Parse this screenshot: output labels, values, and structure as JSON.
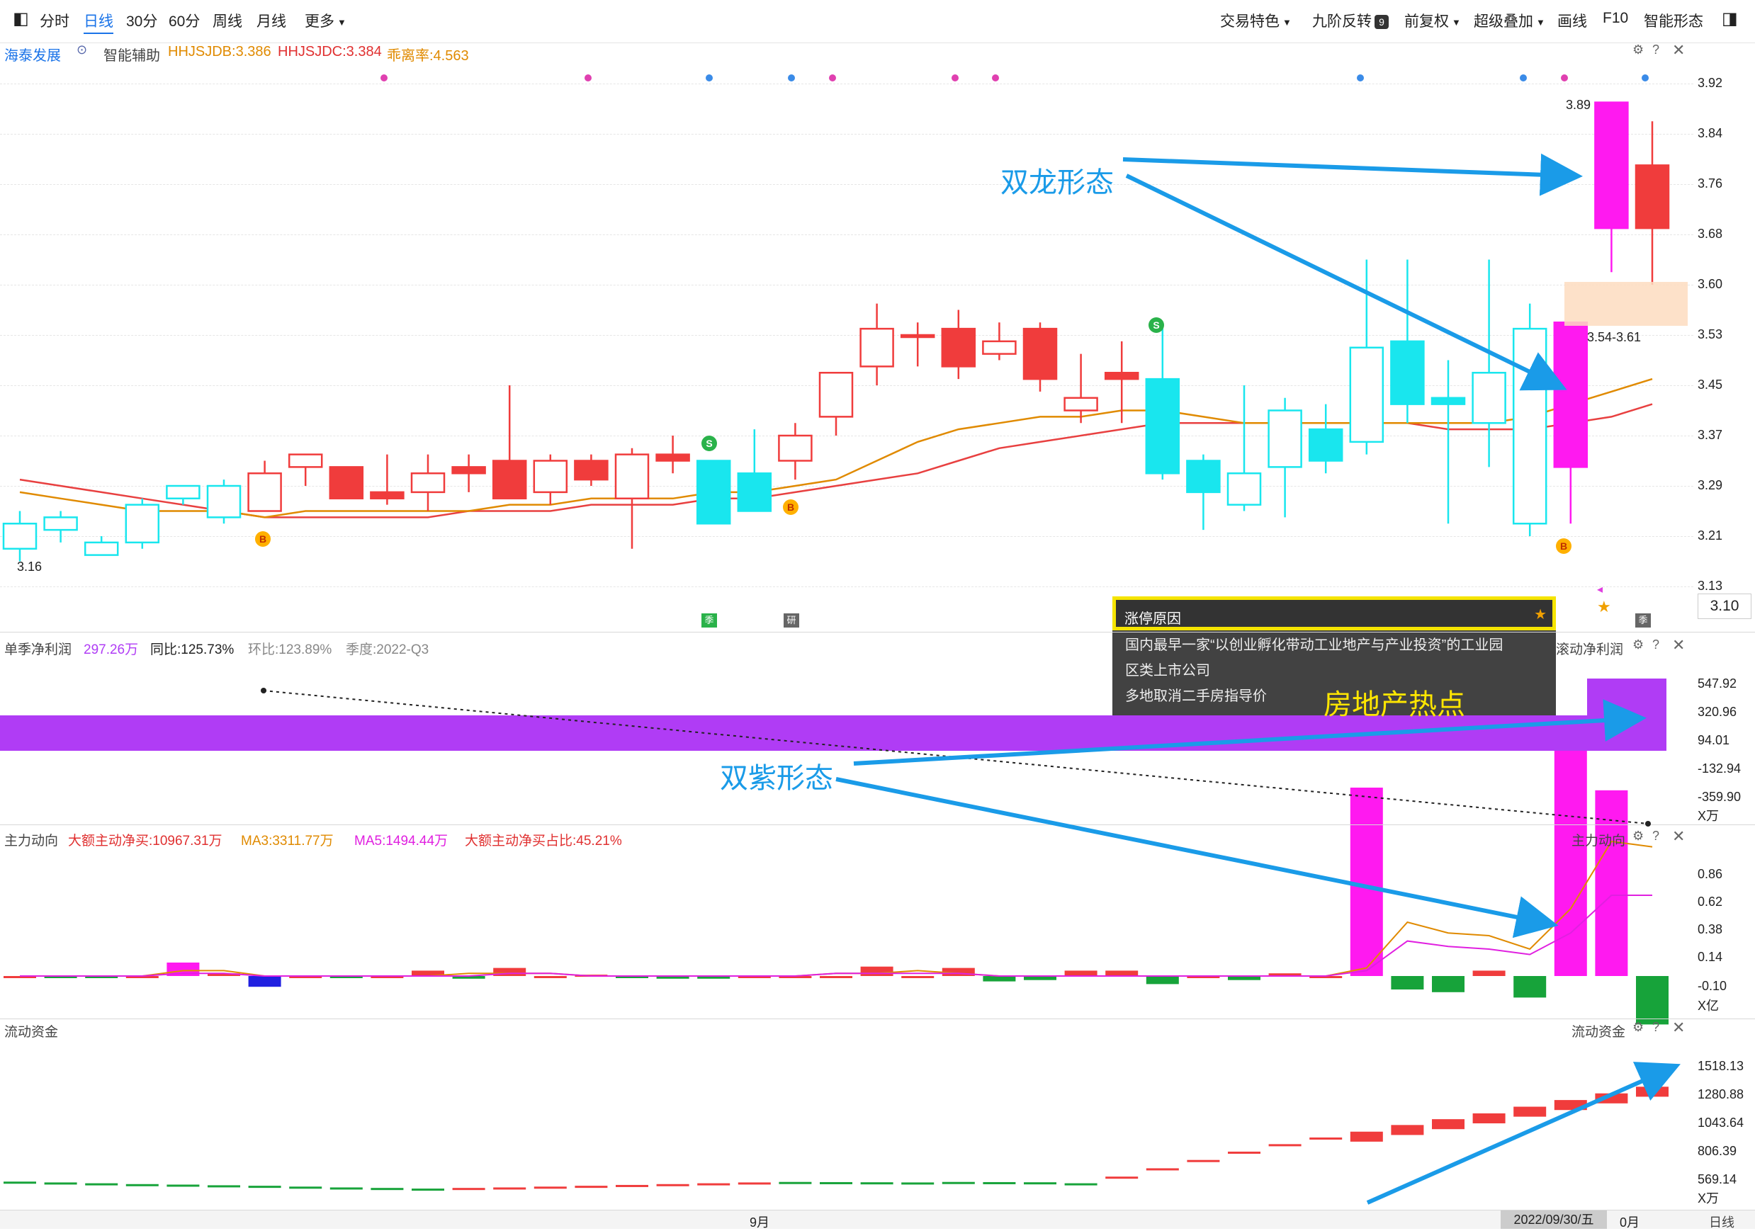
{
  "toolbar": {
    "items": [
      "分时",
      "日线",
      "30分",
      "60分",
      "周线",
      "月线",
      "更多"
    ],
    "right": [
      "交易特色",
      "九阶反转",
      "9",
      "前复权",
      "超级叠加",
      "画线",
      "F10",
      "智能形态"
    ]
  },
  "price_info": {
    "stock": "海泰发展",
    "assist": "智能辅助",
    "hhjsjdb": "HHJSJDB:3.386",
    "hhjsjdc": "HHJSJDC:3.384",
    "deviation": "乖离率:4.563"
  },
  "price_axis": [
    "3.92",
    "3.84",
    "3.76",
    "3.68",
    "3.60",
    "3.53",
    "3.45",
    "3.37",
    "3.29",
    "3.21",
    "3.13"
  ],
  "current_price": "3.10",
  "labels": {
    "low": "3.16",
    "high": "3.89",
    "zone": "3.54-3.61"
  },
  "candle_markers": {
    "s": "S",
    "b": "B",
    "yan": "研",
    "si": "季"
  },
  "profit_info": {
    "name": "单季净利润",
    "value": "297.26万",
    "yoy": "同比:125.73%",
    "qoq": "环比:123.89%",
    "season": "季度:2022-Q3",
    "right_label": "滚动净利润"
  },
  "profit_axis": [
    "547.92",
    "320.96",
    "94.01",
    "-132.94",
    "-359.90"
  ],
  "profit_unit": "X万",
  "flow_info": {
    "name": "主力动向",
    "big_net": "大额主动净买:10967.31万",
    "ma3": "MA3:3311.77万",
    "ma5": "MA5:1494.44万",
    "ratio": "大额主动净买占比:45.21%",
    "right_label": "主力动向"
  },
  "flow_axis": [
    "0.86",
    "0.62",
    "0.38",
    "0.14",
    "-0.10"
  ],
  "flow_unit": "X亿",
  "liquid_info": {
    "name": "流动资金",
    "right_label": "流动资金"
  },
  "liquid_axis": [
    "1518.13",
    "1280.88",
    "1043.64",
    "806.39",
    "569.14"
  ],
  "liquid_unit": "X万",
  "bottom": {
    "month": "9月",
    "date": "2022/09/30/五",
    "month2": "0月",
    "period": "日线"
  },
  "popup": {
    "title": "涨停原因",
    "line1": "国内最早一家“以创业孵化带动工业地产与产业投资”的工业园",
    "line2": "区类上市公司",
    "line3": "多地取消二手房指导价"
  },
  "annotations": {
    "a1": "双龙形态",
    "a2": "房地产热点",
    "a3": "双紫形态"
  },
  "colors": {
    "up": "#f03c3c",
    "down": "#19e6ee",
    "magenta": "#ff19f0",
    "green": "#17a33a",
    "purple": "#b03cf5",
    "blue_arrow": "#1a9be8"
  },
  "chart_data": [
    {
      "type": "candlestick",
      "title": "",
      "yticks": [
        3.92,
        3.84,
        3.76,
        3.68,
        3.6,
        3.53,
        3.45,
        3.37,
        3.29,
        3.21,
        3.13
      ],
      "ylim": [
        3.1,
        3.95
      ],
      "candles": [
        {
          "o": 3.18,
          "c": 3.22,
          "h": 3.24,
          "l": 3.16,
          "k": "d"
        },
        {
          "o": 3.21,
          "c": 3.23,
          "h": 3.24,
          "l": 3.19,
          "k": "d"
        },
        {
          "o": 3.17,
          "c": 3.19,
          "h": 3.2,
          "l": 3.17,
          "k": "d"
        },
        {
          "o": 3.19,
          "c": 3.25,
          "h": 3.26,
          "l": 3.18,
          "k": "d"
        },
        {
          "o": 3.26,
          "c": 3.28,
          "h": 3.28,
          "l": 3.25,
          "k": "d"
        },
        {
          "o": 3.23,
          "c": 3.28,
          "h": 3.29,
          "l": 3.22,
          "k": "d"
        },
        {
          "o": 3.24,
          "c": 3.3,
          "h": 3.32,
          "l": 3.24,
          "k": "h"
        },
        {
          "o": 3.31,
          "c": 3.33,
          "h": 3.33,
          "l": 3.28,
          "k": "h"
        },
        {
          "o": 3.31,
          "c": 3.26,
          "h": 3.31,
          "l": 3.26,
          "k": "r"
        },
        {
          "o": 3.27,
          "c": 3.26,
          "h": 3.33,
          "l": 3.25,
          "k": "r"
        },
        {
          "o": 3.27,
          "c": 3.3,
          "h": 3.33,
          "l": 3.24,
          "k": "h"
        },
        {
          "o": 3.3,
          "c": 3.31,
          "h": 3.33,
          "l": 3.27,
          "k": "r"
        },
        {
          "o": 3.32,
          "c": 3.26,
          "h": 3.44,
          "l": 3.26,
          "k": "r"
        },
        {
          "o": 3.27,
          "c": 3.32,
          "h": 3.33,
          "l": 3.25,
          "k": "h"
        },
        {
          "o": 3.32,
          "c": 3.29,
          "h": 3.33,
          "l": 3.28,
          "k": "r"
        },
        {
          "o": 3.26,
          "c": 3.33,
          "h": 3.34,
          "l": 3.18,
          "k": "h"
        },
        {
          "o": 3.33,
          "c": 3.32,
          "h": 3.36,
          "l": 3.3,
          "k": "r"
        },
        {
          "o": 3.32,
          "c": 3.22,
          "h": 3.32,
          "l": 3.22,
          "k": "d"
        },
        {
          "o": 3.3,
          "c": 3.24,
          "h": 3.37,
          "l": 3.24,
          "k": "d"
        },
        {
          "o": 3.32,
          "c": 3.36,
          "h": 3.38,
          "l": 3.29,
          "k": "h"
        },
        {
          "o": 3.39,
          "c": 3.46,
          "h": 3.46,
          "l": 3.36,
          "k": "h"
        },
        {
          "o": 3.47,
          "c": 3.53,
          "h": 3.57,
          "l": 3.44,
          "k": "h"
        },
        {
          "o": 3.52,
          "c": 3.52,
          "h": 3.54,
          "l": 3.47,
          "k": "r"
        },
        {
          "o": 3.53,
          "c": 3.47,
          "h": 3.56,
          "l": 3.45,
          "k": "r"
        },
        {
          "o": 3.49,
          "c": 3.51,
          "h": 3.54,
          "l": 3.48,
          "k": "h"
        },
        {
          "o": 3.53,
          "c": 3.45,
          "h": 3.54,
          "l": 3.43,
          "k": "r"
        },
        {
          "o": 3.42,
          "c": 3.4,
          "h": 3.49,
          "l": 3.38,
          "k": "h"
        },
        {
          "o": 3.46,
          "c": 3.45,
          "h": 3.51,
          "l": 3.38,
          "k": "r"
        },
        {
          "o": 3.45,
          "c": 3.3,
          "h": 3.53,
          "l": 3.29,
          "k": "d"
        },
        {
          "o": 3.32,
          "c": 3.27,
          "h": 3.33,
          "l": 3.21,
          "k": "d"
        },
        {
          "o": 3.25,
          "c": 3.3,
          "h": 3.44,
          "l": 3.24,
          "k": "d"
        },
        {
          "o": 3.31,
          "c": 3.4,
          "h": 3.42,
          "l": 3.23,
          "k": "d"
        },
        {
          "o": 3.37,
          "c": 3.32,
          "h": 3.41,
          "l": 3.3,
          "k": "d"
        },
        {
          "o": 3.35,
          "c": 3.5,
          "h": 3.64,
          "l": 3.33,
          "k": "d"
        },
        {
          "o": 3.51,
          "c": 3.41,
          "h": 3.64,
          "l": 3.38,
          "k": "d"
        },
        {
          "o": 3.42,
          "c": 3.41,
          "h": 3.48,
          "l": 3.22,
          "k": "d"
        },
        {
          "o": 3.38,
          "c": 3.46,
          "h": 3.64,
          "l": 3.31,
          "k": "d"
        },
        {
          "o": 3.22,
          "c": 3.53,
          "h": 3.57,
          "l": 3.2,
          "k": "d"
        },
        {
          "o": 3.31,
          "c": 3.54,
          "h": 3.54,
          "l": 3.22,
          "k": "m"
        },
        {
          "o": 3.69,
          "c": 3.89,
          "h": 3.89,
          "l": 3.62,
          "k": "m"
        },
        {
          "o": 3.79,
          "c": 3.69,
          "h": 3.86,
          "l": 3.6,
          "k": "r"
        }
      ],
      "ma_red": [
        3.29,
        3.28,
        3.27,
        3.26,
        3.25,
        3.24,
        3.23,
        3.23,
        3.23,
        3.23,
        3.23,
        3.24,
        3.24,
        3.24,
        3.25,
        3.25,
        3.25,
        3.26,
        3.26,
        3.27,
        3.28,
        3.29,
        3.3,
        3.32,
        3.34,
        3.35,
        3.36,
        3.37,
        3.38,
        3.38,
        3.38,
        3.38,
        3.38,
        3.38,
        3.38,
        3.37,
        3.37,
        3.37,
        3.38,
        3.39,
        3.41
      ],
      "ma_orange": [
        3.27,
        3.26,
        3.25,
        3.24,
        3.24,
        3.24,
        3.23,
        3.24,
        3.24,
        3.24,
        3.24,
        3.24,
        3.25,
        3.25,
        3.26,
        3.26,
        3.26,
        3.27,
        3.27,
        3.28,
        3.29,
        3.32,
        3.35,
        3.37,
        3.38,
        3.39,
        3.39,
        3.4,
        3.4,
        3.39,
        3.38,
        3.38,
        3.38,
        3.38,
        3.38,
        3.38,
        3.38,
        3.39,
        3.41,
        3.43,
        3.45
      ]
    },
    {
      "type": "bar",
      "title": "",
      "series": [
        {
          "name": "主力动向",
          "values": [
            0.0,
            -0.005,
            -0.005,
            0.0,
            0.05,
            0.01,
            -0.04,
            0.0,
            -0.005,
            0.0,
            0.02,
            -0.01,
            0.03,
            0.0,
            0.005,
            -0.005,
            -0.01,
            -0.01,
            0.0,
            0.0,
            0.0,
            0.035,
            0.0,
            0.03,
            -0.02,
            -0.015,
            0.02,
            0.02,
            -0.03,
            0.0,
            -0.015,
            0.01,
            0.0,
            0.0,
            0.0,
            0.0,
            0.0,
            0.0,
            0.28,
            0.0,
            -0.05
          ]
        },
        {
          "name": "",
          "values": [
            0,
            0,
            0,
            0,
            0,
            0,
            0,
            0,
            0,
            0,
            0,
            0,
            0,
            0,
            0,
            0,
            0,
            0,
            0,
            0,
            0,
            0,
            0,
            0,
            0,
            0,
            0,
            0,
            0,
            0,
            0,
            0,
            0,
            0.7,
            -0.05,
            -0.06,
            0.02,
            -0.08,
            0.85,
            0.69,
            -0.18
          ]
        }
      ],
      "ylim": [
        -0.22,
        1.0
      ]
    },
    {
      "type": "bar",
      "title": "",
      "series": [
        {
          "name": "流动资金",
          "values": [
            530,
            525,
            520,
            515,
            512,
            508,
            505,
            500,
            495,
            492,
            488,
            492,
            495,
            500,
            505,
            510,
            515,
            520,
            525,
            528,
            527,
            526,
            525,
            528,
            527,
            526,
            520,
            560,
            610,
            660,
            710,
            755,
            795,
            830,
            870,
            905,
            940,
            980,
            1020,
            1060,
            1100
          ]
        }
      ],
      "ylim": [
        450,
        1600
      ]
    }
  ]
}
